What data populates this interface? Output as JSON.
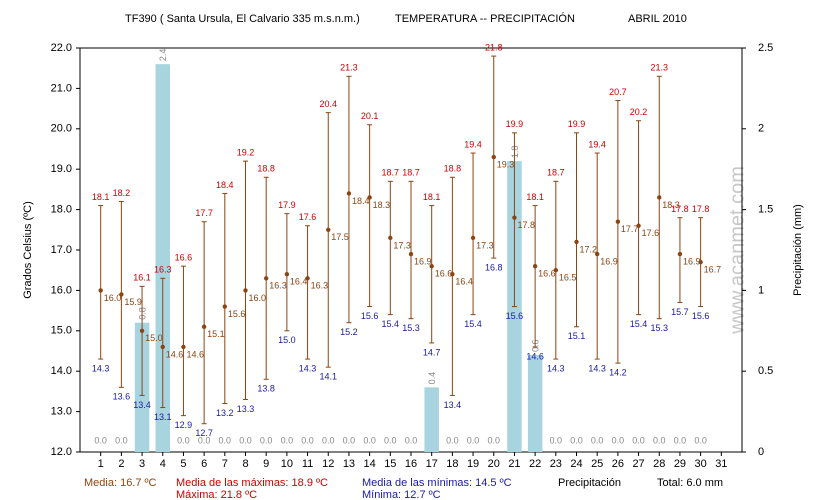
{
  "chart_data": {
    "type": "combo",
    "title": "TF390 ( Santa Ursula, El Calvario 335 m.s.n.m.)",
    "subtitle": "TEMPERATURA -- PRECIPITACIÓN",
    "date": "ABRIL 2010",
    "y_label": "Grados Celsius (ºC)",
    "y2_label": "Precipitación (mm)",
    "watermark": "www.acanmet.com",
    "x": [
      1,
      2,
      3,
      4,
      5,
      6,
      7,
      8,
      9,
      10,
      11,
      12,
      13,
      14,
      15,
      16,
      17,
      18,
      19,
      20,
      21,
      22,
      23,
      24,
      25,
      26,
      27,
      28,
      29,
      30
    ],
    "xlim": [
      0,
      32
    ],
    "xticks": [
      1,
      2,
      3,
      4,
      5,
      6,
      7,
      8,
      9,
      10,
      11,
      12,
      13,
      14,
      15,
      16,
      17,
      18,
      19,
      20,
      21,
      22,
      23,
      24,
      25,
      26,
      27,
      28,
      29,
      30,
      31
    ],
    "ylim": [
      12,
      22
    ],
    "yticks": [
      {
        "value": 12,
        "label": "12.0"
      },
      {
        "value": 13,
        "label": "13.0"
      },
      {
        "value": 14,
        "label": "14.0"
      },
      {
        "value": 15,
        "label": "15.0"
      },
      {
        "value": 16,
        "label": "16.0"
      },
      {
        "value": 17,
        "label": "17.0"
      },
      {
        "value": 18,
        "label": "18.0"
      },
      {
        "value": 19,
        "label": "19.0"
      },
      {
        "value": 20,
        "label": "20.0"
      },
      {
        "value": 21,
        "label": "21.0"
      },
      {
        "value": 22,
        "label": "22.0"
      }
    ],
    "y2lim": [
      0,
      2.5
    ],
    "y2ticks": [
      0,
      0.5,
      1,
      1.5,
      2,
      2.5
    ],
    "series": [
      {
        "color": "#cc0000",
        "values": [
          18.1,
          18.2,
          16.1,
          16.3,
          16.6,
          17.7,
          18.4,
          19.2,
          18.8,
          17.9,
          17.6,
          20.4,
          21.3,
          20.1,
          18.7,
          18.7,
          18.1,
          18.8,
          19.4,
          21.8,
          19.9,
          18.1,
          18.7,
          19.9,
          19.4,
          20.7,
          20.2,
          21.3,
          17.8,
          17.8
        ]
      },
      {
        "color": "#1a1aa0",
        "values": [
          14.3,
          13.6,
          13.4,
          13.1,
          12.9,
          12.7,
          13.2,
          13.3,
          13.8,
          15,
          14.3,
          14.1,
          15.2,
          15.6,
          15.4,
          15.3,
          14.7,
          13.4,
          15.4,
          16.8,
          15.6,
          14.6,
          14.3,
          15.1,
          14.3,
          14.2,
          15.4,
          15.3,
          15.7,
          15.6
        ],
        "value_labels": [
          "14.3",
          "13.6",
          "13.4",
          "13.1",
          "12.9",
          "12.7",
          "13.2",
          "13.3",
          "13.8",
          "15.0",
          "14.3",
          "14.1",
          "15.2",
          "15.6",
          "15.4",
          "15.3",
          "14.7",
          "13.4",
          "15.4",
          "16.8",
          "15.6",
          "14.6",
          "14.3",
          "15.1",
          "14.3",
          "14.2",
          "15.4",
          "15.3",
          "15.7",
          "15.6"
        ]
      },
      {
        "color": "#8b4513",
        "values": [
          16,
          15.9,
          15,
          14.6,
          14.6,
          15.1,
          15.6,
          16,
          16.3,
          16.4,
          16.3,
          17.5,
          18.4,
          18.3,
          17.3,
          16.9,
          16.6,
          16.4,
          17.3,
          19.3,
          17.8,
          16.6,
          16.5,
          17.2,
          16.9,
          17.7,
          17.6,
          18.3,
          16.9,
          16.7
        ],
        "value_labels": [
          "16.0",
          "15.9",
          "15.0",
          "14.6",
          "14.6",
          "15.1",
          "15.6",
          "16.0",
          "16.3",
          "16.4",
          "16.3",
          "17.5",
          "18.4",
          "18.3",
          "17.3",
          "16.9",
          "16.6",
          "16.4",
          "17.3",
          "19.3",
          "17.8",
          "16.6",
          "16.5",
          "17.2",
          "16.9",
          "17.7",
          "17.6",
          "18.3",
          "16.9",
          "16.7"
        ]
      },
      {
        "color": "#a8d4e0",
        "axis": "y2",
        "values": [
          0,
          0,
          0.8,
          2.4,
          0,
          0,
          0,
          0,
          0,
          0,
          0,
          0,
          0,
          0,
          0,
          0,
          0.4,
          0,
          0,
          0,
          1.8,
          0.6,
          0,
          0,
          0,
          0,
          0,
          0,
          0,
          0
        ],
        "value_labels": [
          "0.0",
          "0.0",
          "0.8",
          "2.4",
          "0.0",
          "0.0",
          "0.0",
          "0.0",
          "0.0",
          "0.0",
          "0.0",
          "0.0",
          "0.0",
          "0.0",
          "0.0",
          "0.0",
          "0.4",
          "0.0",
          "0.0",
          "0.0",
          "1.8",
          "0.6",
          "0.0",
          "0.0",
          "0.0",
          "0.0",
          "0.0",
          "0.0",
          "0.0",
          "0.0"
        ]
      }
    ],
    "annotations": [
      "Media: 16.7 ºC",
      "Media de las máximas: 18.9 ºC",
      "Media de las mínimas: 14.5 ºC",
      "Precipitación",
      "Total: 6.0 mm",
      "Máxima: 21.8 ºC",
      "Mínima: 12.7 ºC"
    ]
  }
}
